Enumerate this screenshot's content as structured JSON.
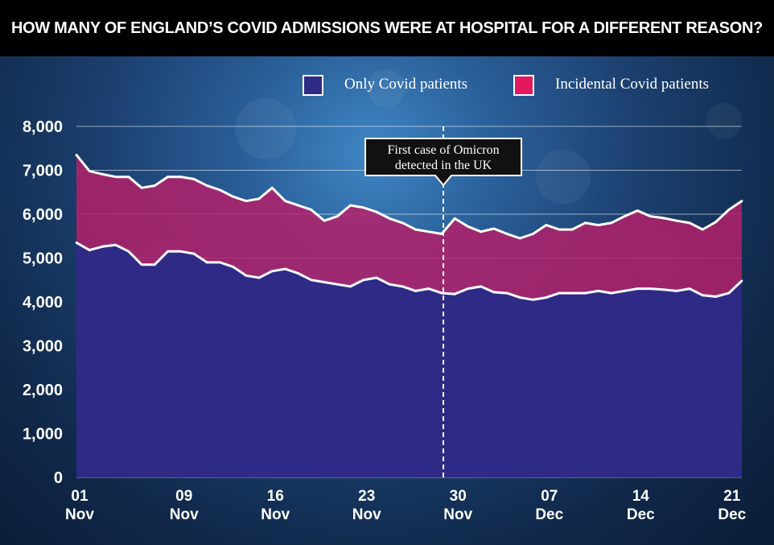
{
  "title": "HOW MANY OF ENGLAND’S COVID ADMISSIONS WERE AT HOSPITAL FOR A DIFFERENT REASON?",
  "colors": {
    "only_covid": "#2f2a86",
    "incidental": "#b3206a",
    "incidental_swatch": "#e3195f",
    "only_swatch": "#2f2a86",
    "line": "#ffffff",
    "text": "#ffffff"
  },
  "chart_data": {
    "type": "area",
    "stacked": true,
    "title": "HOW MANY OF ENGLAND’S COVID ADMISSIONS WERE AT HOSPITAL FOR A DIFFERENT REASON?",
    "xlabel": "",
    "ylabel": "",
    "ylim": [
      0,
      8000
    ],
    "yticks": [
      "0",
      "1,000",
      "2,000",
      "3,000",
      "4,000",
      "5,000",
      "6,000",
      "7,000",
      "8,000"
    ],
    "grid": true,
    "legend_position": "top-right",
    "x_tick_labels": [
      {
        "day": "01",
        "month": "Nov",
        "date": "2021-11-01"
      },
      {
        "day": "09",
        "month": "Nov",
        "date": "2021-11-09"
      },
      {
        "day": "16",
        "month": "Nov",
        "date": "2021-11-16"
      },
      {
        "day": "23",
        "month": "Nov",
        "date": "2021-11-23"
      },
      {
        "day": "30",
        "month": "Nov",
        "date": "2021-11-30"
      },
      {
        "day": "07",
        "month": "Dec",
        "date": "2021-12-07"
      },
      {
        "day": "14",
        "month": "Dec",
        "date": "2021-12-14"
      },
      {
        "day": "21",
        "month": "Dec",
        "date": "2021-12-21"
      }
    ],
    "x": [
      "2021-11-01",
      "2021-11-02",
      "2021-11-03",
      "2021-11-04",
      "2021-11-05",
      "2021-11-06",
      "2021-11-07",
      "2021-11-08",
      "2021-11-09",
      "2021-11-10",
      "2021-11-11",
      "2021-11-12",
      "2021-11-13",
      "2021-11-14",
      "2021-11-15",
      "2021-11-16",
      "2021-11-17",
      "2021-11-18",
      "2021-11-19",
      "2021-11-20",
      "2021-11-21",
      "2021-11-22",
      "2021-11-23",
      "2021-11-24",
      "2021-11-25",
      "2021-11-26",
      "2021-11-27",
      "2021-11-28",
      "2021-11-29",
      "2021-11-30",
      "2021-12-01",
      "2021-12-02",
      "2021-12-03",
      "2021-12-04",
      "2021-12-05",
      "2021-12-06",
      "2021-12-07",
      "2021-12-08",
      "2021-12-09",
      "2021-12-10",
      "2021-12-11",
      "2021-12-12",
      "2021-12-13",
      "2021-12-14",
      "2021-12-15",
      "2021-12-16",
      "2021-12-17",
      "2021-12-18",
      "2021-12-19",
      "2021-12-20",
      "2021-12-21",
      "2021-12-22"
    ],
    "series": [
      {
        "name": "Only Covid patients",
        "values": [
          5350,
          5180,
          5260,
          5300,
          5150,
          4850,
          4850,
          5150,
          5150,
          5100,
          4900,
          4900,
          4800,
          4600,
          4550,
          4700,
          4750,
          4650,
          4500,
          4450,
          4400,
          4350,
          4500,
          4550,
          4400,
          4350,
          4250,
          4300,
          4200,
          4180,
          4300,
          4350,
          4220,
          4200,
          4100,
          4050,
          4100,
          4200,
          4200,
          4200,
          4250,
          4200,
          4250,
          4300,
          4300,
          4280,
          4250,
          4300,
          4150,
          4120,
          4200,
          4480
        ]
      },
      {
        "name": "Incidental Covid patients",
        "values": [
          2000,
          1800,
          1650,
          1550,
          1700,
          1750,
          1800,
          1700,
          1700,
          1700,
          1750,
          1650,
          1600,
          1700,
          1800,
          1900,
          1550,
          1550,
          1600,
          1400,
          1550,
          1850,
          1650,
          1500,
          1500,
          1450,
          1400,
          1300,
          1350,
          1720,
          1420,
          1250,
          1450,
          1350,
          1350,
          1500,
          1650,
          1450,
          1450,
          1600,
          1500,
          1600,
          1700,
          1780,
          1650,
          1630,
          1600,
          1500,
          1500,
          1700,
          1900,
          1820
        ]
      }
    ],
    "totals": [
      7350,
      6980,
      6910,
      6850,
      6850,
      6600,
      6650,
      6850,
      6850,
      6800,
      6650,
      6550,
      6400,
      6300,
      6350,
      6600,
      6300,
      6200,
      6100,
      5850,
      5950,
      6200,
      6150,
      6050,
      5900,
      5800,
      5650,
      5600,
      5550,
      5900,
      5720,
      5600,
      5670,
      5550,
      5450,
      5550,
      5750,
      5650,
      5650,
      5800,
      5750,
      5800,
      5950,
      6080,
      5950,
      5910,
      5850,
      5800,
      5650,
      5820,
      6100,
      6300
    ],
    "annotations": [
      {
        "text_lines": [
          "First case of Omicron",
          "detected in the UK"
        ],
        "x": "2021-11-29"
      }
    ]
  }
}
